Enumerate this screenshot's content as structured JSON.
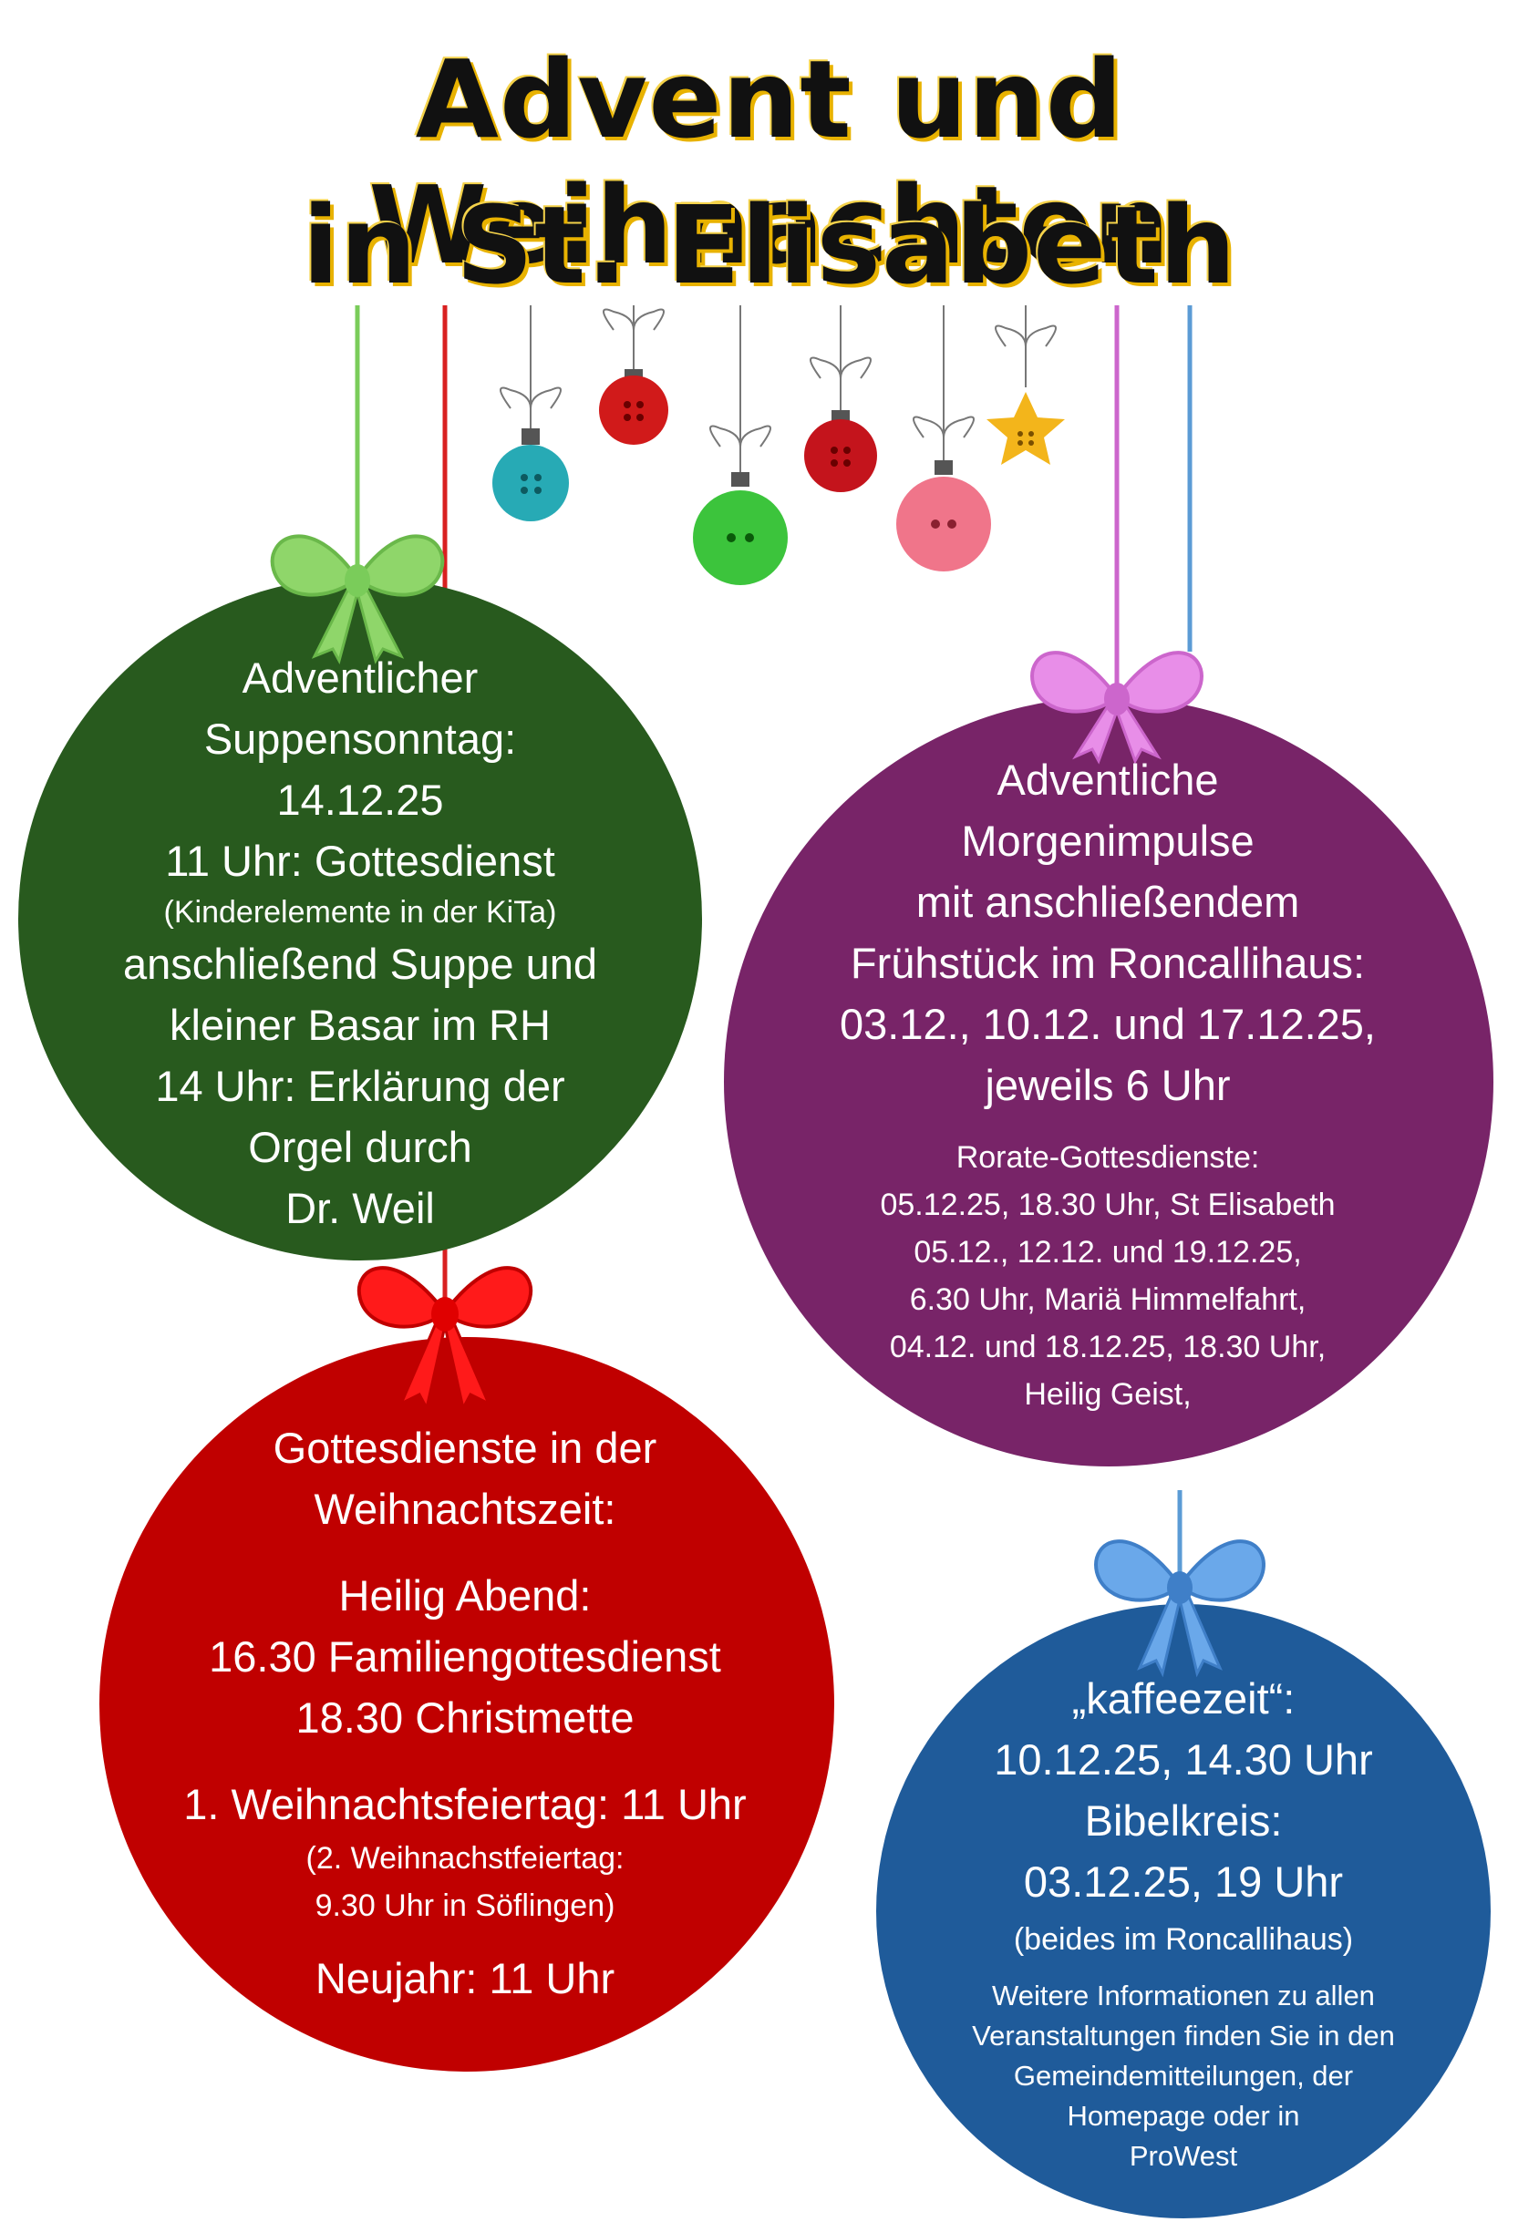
{
  "title": {
    "line1": "Advent und Weihnachten",
    "line2": "in St. Elisabeth"
  },
  "colors": {
    "green": "#285a1e",
    "purple": "#782468",
    "red": "#c00000",
    "blue": "#1f5b9a"
  },
  "green_ornament": {
    "heading": "Adventlicher",
    "heading2": "Suppensonntag:",
    "date": "14.12.25",
    "service": "11 Uhr: Gottesdienst",
    "note": "(Kinderelemente in der KiTa)",
    "after1": "anschließend Suppe und",
    "after2": "kleiner Basar im RH",
    "organ1": "14 Uhr: Erklärung der",
    "organ2": "Orgel durch",
    "organ3": "Dr. Weil"
  },
  "purple_ornament": {
    "line1": "Adventliche",
    "line2": "Morgenimpulse",
    "line3": "mit anschließendem",
    "line4": "Frühstück im Roncallihaus:",
    "line5": "03.12., 10.12. und 17.12.25,",
    "line6": "jeweils 6 Uhr",
    "rorate": [
      "Rorate-Gottesdienste:",
      "05.12.25, 18.30 Uhr, St Elisabeth",
      "05.12., 12.12. und 19.12.25,",
      "6.30 Uhr, Mariä Himmelfahrt,",
      "04.12. und 18.12.25, 18.30 Uhr,",
      "Heilig Geist,"
    ]
  },
  "red_ornament": {
    "heading1": "Gottesdienste in der",
    "heading2": "Weihnachtszeit:",
    "eve": "Heilig Abend:",
    "family": "16.30 Familiengottesdienst",
    "mass": "18.30 Christmette",
    "day1": "1. Weihnachtsfeiertag: 11 Uhr",
    "day2a": "(2. Weihnachstfeiertag:",
    "day2b": "9.30 Uhr in Söflingen)",
    "newyear": "Neujahr: 11 Uhr"
  },
  "blue_ornament": {
    "coffee": "„kaffeezeit“:",
    "coffee_date": "10.12.25, 14.30 Uhr",
    "bible": "Bibelkreis:",
    "bible_date": "03.12.25, 19 Uhr",
    "both": "(beides im Roncallihaus)",
    "info": [
      "Weitere Informationen zu allen",
      "Veranstaltungen finden Sie in den",
      "Gemeindemitteilungen, der",
      "Homepage oder in",
      "ProWest"
    ]
  }
}
